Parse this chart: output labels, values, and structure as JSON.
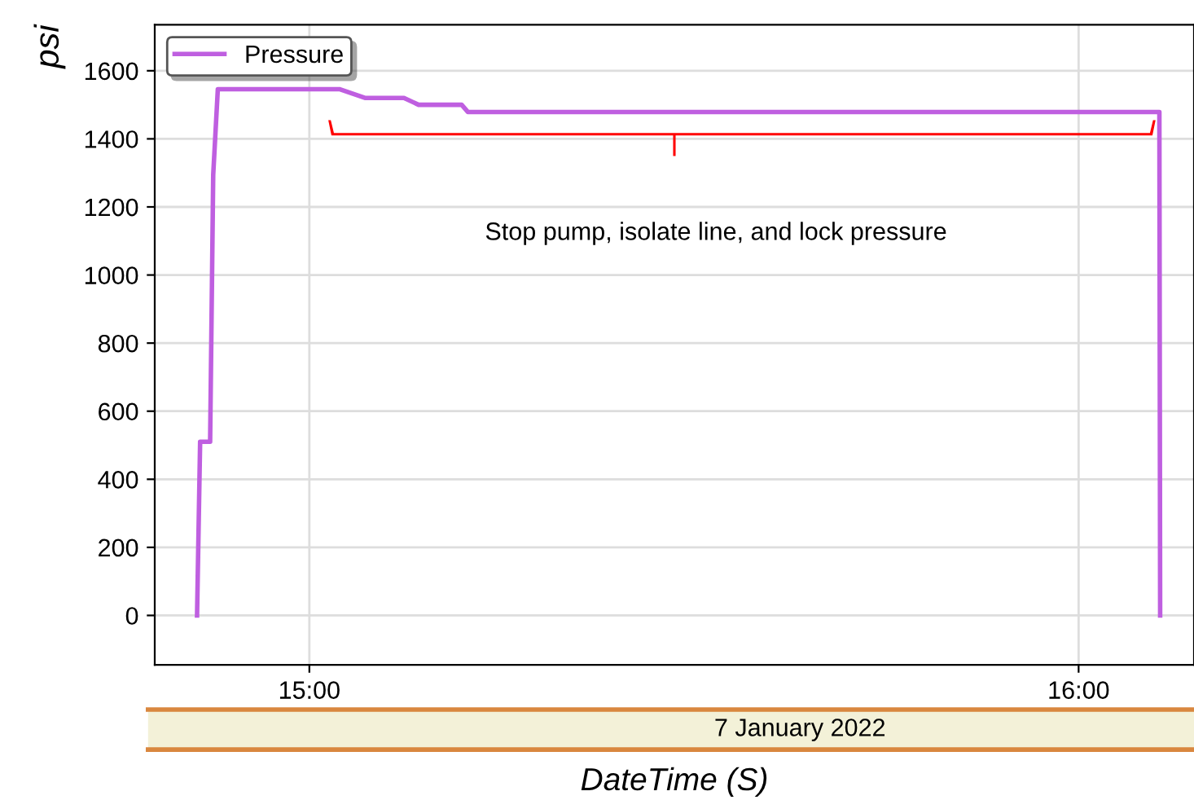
{
  "chart_data": {
    "type": "line",
    "xlabel": "DateTime (S)",
    "ylabel": "psi",
    "annotations": [
      "Stop pump, isolate line, and lock pressure",
      "7 January 2022"
    ],
    "x": [
      14.854,
      14.858,
      14.871,
      14.875,
      14.881,
      15.039,
      15.073,
      15.123,
      15.142,
      15.198,
      15.206,
      16.105,
      16.106
    ],
    "series": [
      {
        "name": "Pressure",
        "color": "#bf5fe0",
        "values": [
          0,
          510,
          510,
          1294,
          1546,
          1546,
          1520,
          1520,
          1500,
          1500,
          1479,
          1479,
          0
        ]
      }
    ],
    "xlim": [
      14.799,
      16.15
    ],
    "ylim": [
      -145,
      1735
    ],
    "xticks": [
      {
        "value": 15,
        "label": "15:00"
      },
      {
        "value": 16,
        "label": "16:00"
      }
    ],
    "yticks": [
      0,
      200,
      400,
      600,
      800,
      1000,
      1200,
      1400,
      1600
    ],
    "grid": true,
    "legend": "top left",
    "marker": "none",
    "line_style": "solid"
  }
}
